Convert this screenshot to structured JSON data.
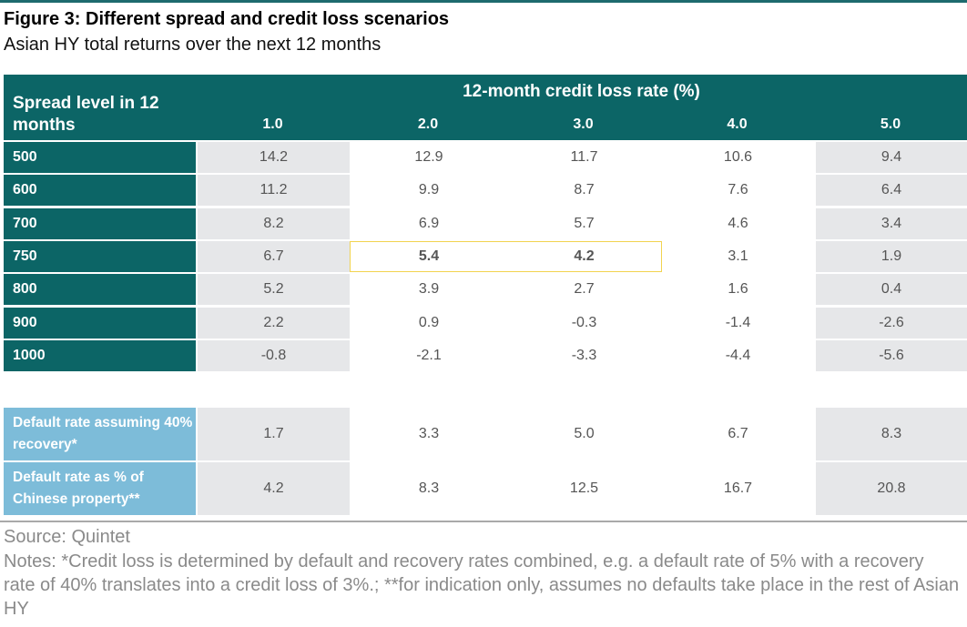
{
  "header": {
    "title": "Figure 3: Different spread and credit loss scenarios",
    "subtitle": "Asian HY total returns over the next 12 months"
  },
  "chart_data": {
    "type": "table",
    "row_header_label": "Spread level in 12 months",
    "column_group_label": "12-month credit loss rate (%)",
    "columns": [
      "1.0",
      "2.0",
      "3.0",
      "4.0",
      "5.0"
    ],
    "rows": [
      {
        "label": "500",
        "values": [
          "14.2",
          "12.9",
          "11.7",
          "10.6",
          "9.4"
        ]
      },
      {
        "label": "600",
        "values": [
          "11.2",
          "9.9",
          "8.7",
          "7.6",
          "6.4"
        ]
      },
      {
        "label": "700",
        "values": [
          "8.2",
          "6.9",
          "5.7",
          "4.6",
          "3.4"
        ]
      },
      {
        "label": "750",
        "values": [
          "6.7",
          "5.4",
          "4.2",
          "3.1",
          "1.9"
        ]
      },
      {
        "label": "800",
        "values": [
          "5.2",
          "3.9",
          "2.7",
          "1.6",
          "0.4"
        ]
      },
      {
        "label": "900",
        "values": [
          "2.2",
          "0.9",
          "-0.3",
          "-1.4",
          "-2.6"
        ]
      },
      {
        "label": "1000",
        "values": [
          "-0.8",
          "-2.1",
          "-3.3",
          "-4.4",
          "-5.6"
        ]
      }
    ],
    "highlighted_cells": [
      {
        "row": "750",
        "column": "2.0"
      },
      {
        "row": "750",
        "column": "3.0"
      }
    ],
    "extra_rows": [
      {
        "label": "Default rate assuming 40% recovery*",
        "values": [
          "1.7",
          "3.3",
          "5.0",
          "6.7",
          "8.3"
        ]
      },
      {
        "label": "Default rate as % of Chinese property**",
        "values": [
          "4.2",
          "8.3",
          "12.5",
          "16.7",
          "20.8"
        ]
      }
    ]
  },
  "footer": {
    "source": "Source: Quintet",
    "notes": "Notes: *Credit loss is determined by default and recovery rates combined, e.g. a default rate of 5% with a recovery rate of 40% translates into a credit loss of 3%.; **for indication only, assumes no defaults take place in the rest of Asian HY"
  },
  "colors": {
    "header_teal": "#0c6566",
    "light_blue": "#7dbcd9",
    "gray_cell": "#e6e7e9",
    "highlight_border": "#f2d34f"
  }
}
